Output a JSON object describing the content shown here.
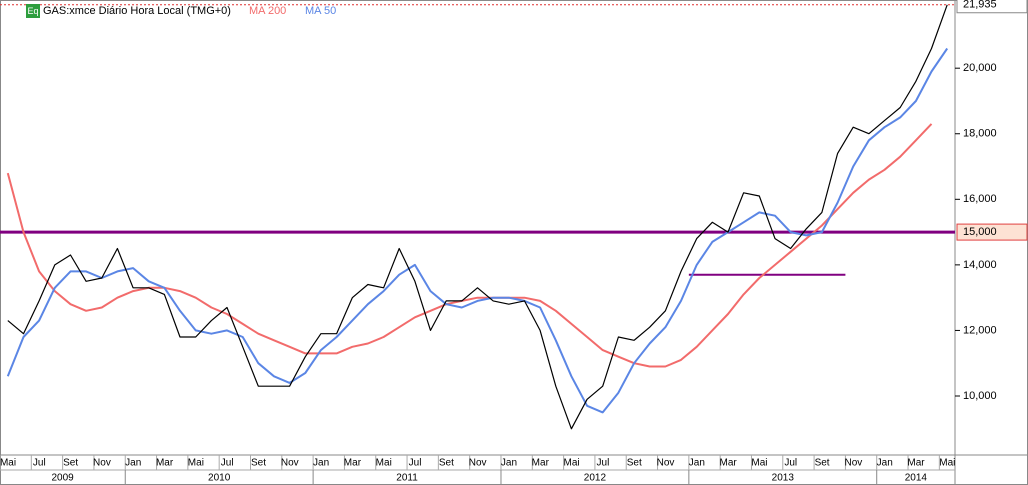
{
  "chart_data": {
    "type": "line",
    "badge": "Eq",
    "x": [
      "2009-05",
      "2009-06",
      "2009-07",
      "2009-08",
      "2009-09",
      "2009-10",
      "2009-11",
      "2009-12",
      "2010-01",
      "2010-02",
      "2010-03",
      "2010-04",
      "2010-05",
      "2010-06",
      "2010-07",
      "2010-08",
      "2010-09",
      "2010-10",
      "2010-11",
      "2010-12",
      "2011-01",
      "2011-02",
      "2011-03",
      "2011-04",
      "2011-05",
      "2011-06",
      "2011-07",
      "2011-08",
      "2011-09",
      "2011-10",
      "2011-11",
      "2011-12",
      "2012-01",
      "2012-02",
      "2012-03",
      "2012-04",
      "2012-05",
      "2012-06",
      "2012-07",
      "2012-08",
      "2012-09",
      "2012-10",
      "2012-11",
      "2012-12",
      "2013-01",
      "2013-02",
      "2013-03",
      "2013-04",
      "2013-05",
      "2013-06",
      "2013-07",
      "2013-08",
      "2013-09",
      "2013-10",
      "2013-11",
      "2013-12",
      "2014-01",
      "2014-02",
      "2014-03",
      "2014-04",
      "2014-05"
    ],
    "series": [
      {
        "name": "GAS:xmce Diário Hora Local (TMG+0)",
        "color": "#000000",
        "values": [
          12300,
          11900,
          12900,
          14000,
          14300,
          13500,
          13600,
          14500,
          13300,
          13300,
          13100,
          11800,
          11800,
          12300,
          12700,
          11500,
          10300,
          10300,
          10300,
          11200,
          11900,
          11900,
          13000,
          13400,
          13300,
          14500,
          13500,
          12000,
          12900,
          12900,
          13300,
          12900,
          12800,
          12900,
          12000,
          10300,
          9000,
          9900,
          10300,
          11800,
          11700,
          12100,
          12600,
          13800,
          14800,
          15300,
          15000,
          16200,
          16100,
          14800,
          14500,
          15100,
          15600,
          17400,
          18200,
          18000,
          18400,
          18800,
          19600,
          20600,
          21935
        ]
      },
      {
        "name": "MA 200",
        "color": "#f26b6b",
        "values": [
          16800,
          15000,
          13800,
          13200,
          12800,
          12600,
          12700,
          13000,
          13200,
          13300,
          13300,
          13200,
          13000,
          12700,
          12500,
          12200,
          11900,
          11700,
          11500,
          11300,
          11300,
          11300,
          11500,
          11600,
          11800,
          12100,
          12400,
          12600,
          12800,
          12900,
          13000,
          13000,
          13000,
          13000,
          12900,
          12600,
          12200,
          11800,
          11400,
          11200,
          11000,
          10900,
          10900,
          11100,
          11500,
          12000,
          12500,
          13100,
          13600,
          14000,
          14400,
          14800,
          15200,
          15700,
          16200,
          16600,
          16900,
          17300,
          17800,
          18300,
          null
        ]
      },
      {
        "name": "MA 50",
        "color": "#5b86e5",
        "values": [
          10600,
          11800,
          12300,
          13300,
          13800,
          13800,
          13600,
          13800,
          13900,
          13500,
          13300,
          12600,
          12000,
          11900,
          12000,
          11800,
          11000,
          10600,
          10400,
          10700,
          11400,
          11800,
          12300,
          12800,
          13200,
          13700,
          14000,
          13200,
          12800,
          12700,
          12900,
          13000,
          13000,
          12900,
          12700,
          11700,
          10600,
          9700,
          9500,
          10100,
          11000,
          11600,
          12100,
          12900,
          14000,
          14700,
          15000,
          15300,
          15600,
          15500,
          15000,
          14900,
          15000,
          15900,
          17000,
          17800,
          18200,
          18500,
          19000,
          19900,
          20600
        ]
      }
    ],
    "last_label": {
      "value": 21935,
      "label": "21,935"
    },
    "hlines": [
      {
        "value": 15000,
        "label": "15,000",
        "color": "#800080"
      },
      {
        "value": 13700,
        "x": [
          "2013-01",
          "2013-11"
        ],
        "color": "#800080"
      }
    ],
    "xlim": [
      "2009-05",
      "2014-06"
    ],
    "ylim": [
      8200,
      22080
    ],
    "yticks": [
      {
        "value": 10000,
        "label": "10,000"
      },
      {
        "value": 12000,
        "label": "12,000"
      },
      {
        "value": 14000,
        "label": "14,000"
      },
      {
        "value": 16000,
        "label": "16,000"
      },
      {
        "value": 18000,
        "label": "18,000"
      },
      {
        "value": 20000,
        "label": "20,000"
      }
    ],
    "xticks": [
      {
        "value": "2009-05",
        "label": "Mai"
      },
      {
        "value": "2009-07",
        "label": "Jul"
      },
      {
        "value": "2009-09",
        "label": "Set"
      },
      {
        "value": "2009-11",
        "label": "Nov"
      },
      {
        "value": "2010-01",
        "label": "Jan"
      },
      {
        "value": "2010-03",
        "label": "Mar"
      },
      {
        "value": "2010-05",
        "label": "Mai"
      },
      {
        "value": "2010-07",
        "label": "Jul"
      },
      {
        "value": "2010-09",
        "label": "Set"
      },
      {
        "value": "2010-11",
        "label": "Nov"
      },
      {
        "value": "2011-01",
        "label": "Jan"
      },
      {
        "value": "2011-03",
        "label": "Mar"
      },
      {
        "value": "2011-05",
        "label": "Mai"
      },
      {
        "value": "2011-07",
        "label": "Jul"
      },
      {
        "value": "2011-09",
        "label": "Set"
      },
      {
        "value": "2011-11",
        "label": "Nov"
      },
      {
        "value": "2012-01",
        "label": "Jan"
      },
      {
        "value": "2012-03",
        "label": "Mar"
      },
      {
        "value": "2012-05",
        "label": "Mai"
      },
      {
        "value": "2012-07",
        "label": "Jul"
      },
      {
        "value": "2012-09",
        "label": "Set"
      },
      {
        "value": "2012-11",
        "label": "Nov"
      },
      {
        "value": "2013-01",
        "label": "Jan"
      },
      {
        "value": "2013-03",
        "label": "Mar"
      },
      {
        "value": "2013-05",
        "label": "Mai"
      },
      {
        "value": "2013-07",
        "label": "Jul"
      },
      {
        "value": "2013-09",
        "label": "Set"
      },
      {
        "value": "2013-11",
        "label": "Nov"
      },
      {
        "value": "2014-01",
        "label": "Jan"
      },
      {
        "value": "2014-03",
        "label": "Mar"
      },
      {
        "value": "2014-05",
        "label": "Mai"
      }
    ],
    "years": [
      "2009",
      "2010",
      "2011",
      "2012",
      "2013",
      "2014"
    ]
  }
}
